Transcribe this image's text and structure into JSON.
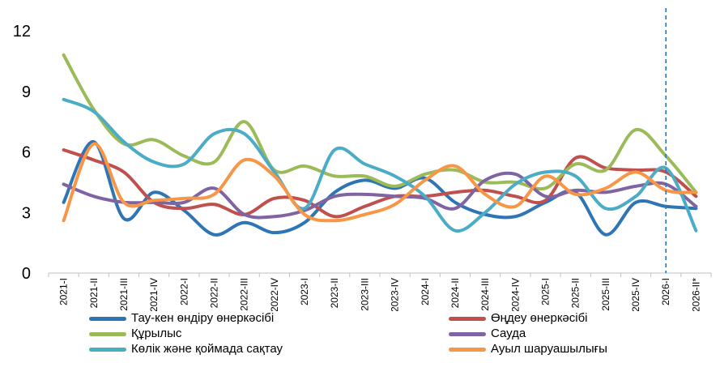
{
  "chart_data": {
    "type": "line",
    "categories": [
      "2021-I",
      "2021-II",
      "2021-III",
      "2021-IV",
      "2022-I",
      "2022-II",
      "2022-III",
      "2022-IV",
      "2023-I",
      "2023-II",
      "2023-III",
      "2023-IV",
      "2024-I",
      "2024-II",
      "2024-III",
      "2024-IV",
      "2025-I",
      "2025-II",
      "2025-III",
      "2025-IV",
      "2026-I",
      "2026-II*"
    ],
    "ylim": [
      0,
      12
    ],
    "yticks": [
      "0",
      "3",
      "6",
      "9",
      "12"
    ],
    "forecast_marker_category": "2026-I",
    "grid": false,
    "legend_position": "bottom",
    "series": [
      {
        "name": "Тау-кен өндіру өнеркәсібі",
        "color": "#2e75b6",
        "values": [
          3.5,
          6.5,
          2.7,
          4.0,
          3.1,
          1.9,
          2.5,
          2.0,
          2.5,
          4.0,
          4.6,
          4.2,
          4.7,
          3.5,
          2.9,
          2.8,
          3.5,
          4.0,
          1.9,
          3.5,
          3.3,
          3.2
        ]
      },
      {
        "name": "Өңдеу өнеркәсібі",
        "color": "#c0504d",
        "values": [
          6.1,
          5.6,
          5.0,
          3.5,
          3.2,
          3.4,
          2.9,
          3.7,
          3.6,
          2.8,
          3.3,
          3.8,
          3.8,
          4.0,
          4.1,
          3.8,
          3.6,
          5.7,
          5.2,
          5.1,
          5.0,
          3.8
        ]
      },
      {
        "name": "Құрылыс",
        "color": "#9bbb59",
        "values": [
          10.8,
          8.1,
          6.4,
          6.6,
          5.8,
          5.5,
          7.5,
          5.1,
          5.3,
          4.8,
          4.8,
          4.3,
          4.9,
          5.1,
          4.5,
          4.5,
          4.2,
          5.4,
          5.1,
          7.1,
          5.8,
          4.0
        ]
      },
      {
        "name": "Сауда",
        "color": "#8064a2",
        "values": [
          4.4,
          3.8,
          3.5,
          3.5,
          3.5,
          4.2,
          2.9,
          2.8,
          3.1,
          3.8,
          3.9,
          3.8,
          3.7,
          3.2,
          4.6,
          4.9,
          3.8,
          4.1,
          4.0,
          4.3,
          4.4,
          3.3
        ]
      },
      {
        "name": "Көлік және қоймада сақтау",
        "color": "#4bacc6",
        "values": [
          8.6,
          8.0,
          6.5,
          5.5,
          5.4,
          6.9,
          6.9,
          5.0,
          3.2,
          6.1,
          5.4,
          4.8,
          3.8,
          2.1,
          3.0,
          4.4,
          5.0,
          4.8,
          3.2,
          3.8,
          5.2,
          2.1
        ]
      },
      {
        "name": "Ауыл шаруашылығы",
        "color": "#f79646",
        "values": [
          2.6,
          6.4,
          3.5,
          3.6,
          3.7,
          3.9,
          5.6,
          4.8,
          2.9,
          2.6,
          2.9,
          3.4,
          4.6,
          5.3,
          3.9,
          3.3,
          4.8,
          3.9,
          4.2,
          5.0,
          4.1,
          4.0
        ]
      }
    ]
  }
}
